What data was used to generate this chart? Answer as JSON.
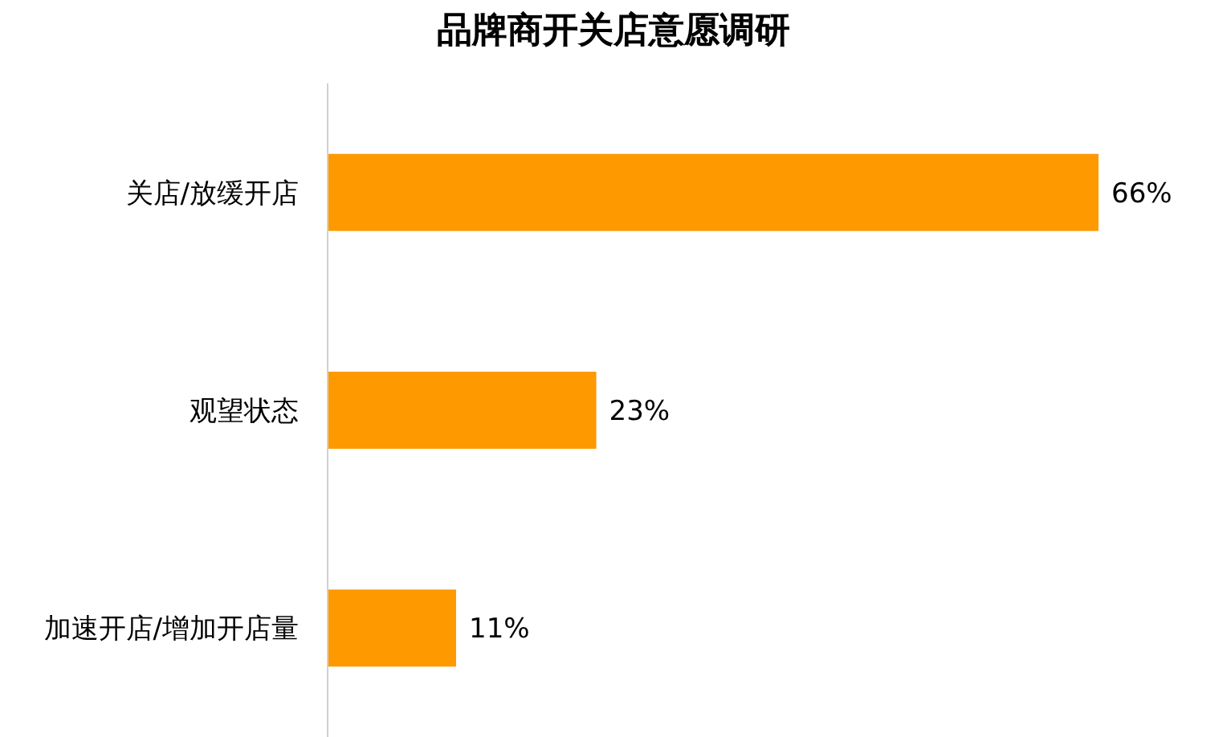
{
  "chart_data": {
    "type": "bar",
    "orientation": "horizontal",
    "title": "品牌商开关店意愿调研",
    "categories": [
      "关店/放缓开店",
      "观望状态",
      "加速开店/增加开店量"
    ],
    "values": [
      66,
      23,
      11
    ],
    "color": "#ff9900",
    "value_labels": [
      "66%",
      "23%",
      "11%"
    ]
  }
}
